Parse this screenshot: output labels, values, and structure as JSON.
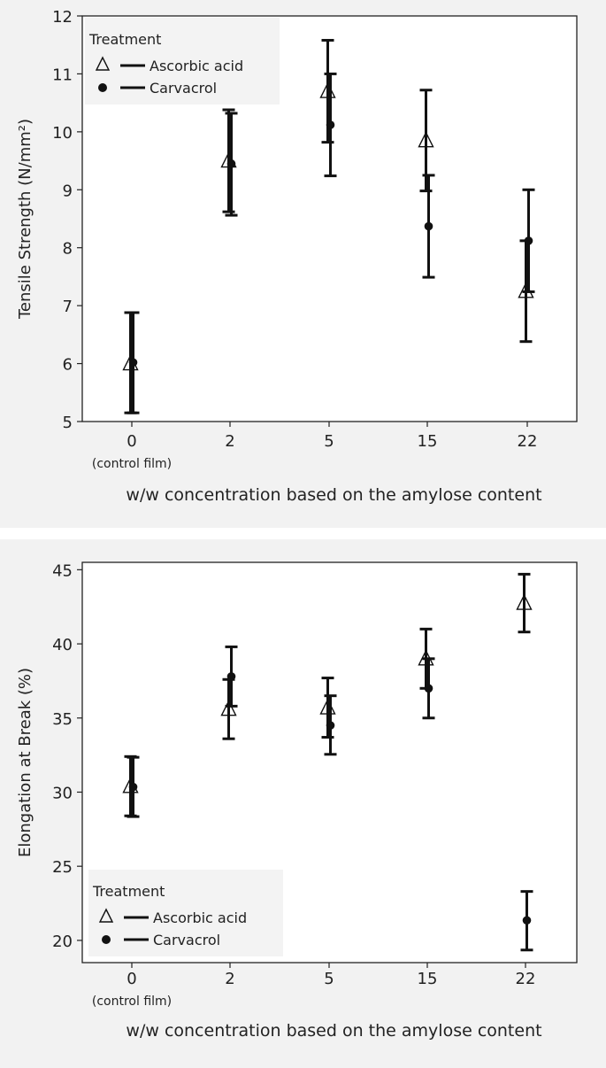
{
  "chart_data": [
    {
      "type": "scatter",
      "subtype": "error-bar",
      "xlabel": "w/w concentration based on the amylose content",
      "ylabel": "Tensile Strength (N/mm²)",
      "ylim": [
        5,
        12
      ],
      "yticks": [
        5,
        6,
        7,
        8,
        9,
        10,
        11,
        12
      ],
      "categories": [
        "0",
        "2",
        "5",
        "15",
        "22"
      ],
      "category_sublabel": "(control film)",
      "legend_title": "Treatment",
      "legend_position": "top-left",
      "grid": false,
      "series": [
        {
          "name": "Ascorbic acid",
          "marker": "open-triangle",
          "values": [
            6.0,
            9.5,
            10.7,
            9.85,
            7.25
          ],
          "lower": [
            5.15,
            8.62,
            9.82,
            8.98,
            6.38
          ],
          "upper": [
            6.88,
            10.38,
            11.58,
            10.72,
            8.12
          ]
        },
        {
          "name": "Carvacrol",
          "marker": "filled-circle",
          "values": [
            6.02,
            9.45,
            10.12,
            8.37,
            8.12
          ],
          "lower": [
            5.15,
            8.56,
            9.24,
            7.49,
            7.24
          ],
          "upper": [
            6.88,
            10.32,
            11.0,
            9.25,
            9.0
          ]
        }
      ]
    },
    {
      "type": "scatter",
      "subtype": "error-bar",
      "xlabel": "w/w concentration based on the amylose content",
      "ylabel": "Elongation at Break (%)",
      "ylim": [
        18.5,
        45.5
      ],
      "yticks": [
        20,
        25,
        30,
        35,
        40,
        45
      ],
      "categories": [
        "0",
        "2",
        "5",
        "15",
        "22"
      ],
      "category_sublabel": "(control film)",
      "legend_title": "Treatment",
      "legend_position": "bottom-left",
      "grid": false,
      "series": [
        {
          "name": "Ascorbic acid",
          "marker": "open-triangle",
          "values": [
            30.4,
            35.6,
            35.7,
            39.0,
            42.75
          ],
          "lower": [
            28.4,
            33.6,
            33.7,
            37.0,
            40.8
          ],
          "upper": [
            32.4,
            37.6,
            37.7,
            41.0,
            44.7
          ]
        },
        {
          "name": "Carvacrol",
          "marker": "filled-circle",
          "values": [
            30.35,
            37.8,
            34.5,
            37.0,
            21.35
          ],
          "lower": [
            28.35,
            35.8,
            32.55,
            35.0,
            19.35
          ],
          "upper": [
            32.35,
            39.8,
            36.5,
            39.0,
            23.3
          ]
        }
      ]
    }
  ]
}
